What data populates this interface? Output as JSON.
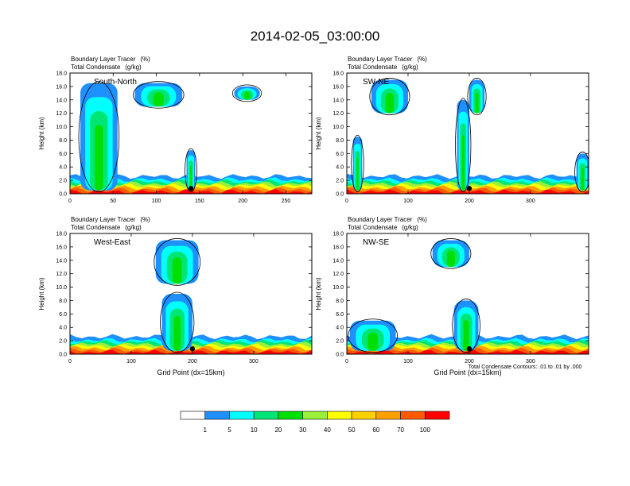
{
  "figure": {
    "title": "2014-02-05_03:00:00",
    "field_label": "Boundary Layer Tracer",
    "field_units": "(%)",
    "contour_label": "Total Condensate",
    "contour_units": "(g/kg)",
    "ylabel": "Height (km)",
    "xlabel": "Grid Point (dx=15km)",
    "contour_note": "Total Condensate Contours: .01 to .01 by .000",
    "contour_tag": ".01"
  },
  "colorbar": {
    "levels": [
      "1",
      "5",
      "10",
      "20",
      "30",
      "40",
      "50",
      "60",
      "70",
      "100"
    ],
    "colors": [
      "#ffffff",
      "#1e90ff",
      "#00ffff",
      "#00e676",
      "#00e000",
      "#9bf03a",
      "#ffff00",
      "#ffd000",
      "#ffa000",
      "#ff5a00",
      "#ff0000"
    ]
  },
  "chart_data": [
    {
      "type": "heatmap",
      "panel": "South-North",
      "xlim": [
        0,
        280
      ],
      "ylim": [
        0,
        18
      ],
      "xticks": [
        0,
        50,
        100,
        150,
        200,
        250
      ],
      "yticks": [
        "0.0",
        "2.0",
        "4.0",
        "6.0",
        "8.0",
        "10.0",
        "12.0",
        "14.0",
        "16.0",
        "18.0"
      ],
      "marker_x": 140,
      "plumes": [
        {
          "x0": 12,
          "x1": 55,
          "y0": 0.5,
          "y1": 16.5
        },
        {
          "x0": 75,
          "x1": 130,
          "y0": 13.0,
          "y1": 16.5
        },
        {
          "x0": 135,
          "x1": 145,
          "y0": 0.5,
          "y1": 6.5
        },
        {
          "x0": 190,
          "x1": 220,
          "y0": 14.0,
          "y1": 16.0
        }
      ]
    },
    {
      "type": "heatmap",
      "panel": "SW-NE",
      "xlim": [
        0,
        395
      ],
      "ylim": [
        0,
        18
      ],
      "xticks": [
        0,
        100,
        200,
        300
      ],
      "yticks": [
        "0.0",
        "2.0",
        "4.0",
        "6.0",
        "8.0",
        "10.0",
        "12.0",
        "14.0",
        "16.0",
        "18.0"
      ],
      "marker_x": 200,
      "plumes": [
        {
          "x0": 10,
          "x1": 25,
          "y0": 0.5,
          "y1": 8.5
        },
        {
          "x0": 40,
          "x1": 100,
          "y0": 12.0,
          "y1": 17.0
        },
        {
          "x0": 180,
          "x1": 200,
          "y0": 0.5,
          "y1": 14.0
        },
        {
          "x0": 200,
          "x1": 225,
          "y0": 12.0,
          "y1": 17.0
        },
        {
          "x0": 375,
          "x1": 395,
          "y0": 0.5,
          "y1": 6.0
        }
      ]
    },
    {
      "type": "heatmap",
      "panel": "West-East",
      "xlim": [
        0,
        395
      ],
      "ylim": [
        0,
        18
      ],
      "xticks": [
        0,
        100,
        200,
        300
      ],
      "yticks": [
        "0.0",
        "2.0",
        "4.0",
        "6.0",
        "8.0",
        "10.0",
        "12.0",
        "14.0",
        "16.0",
        "18.0"
      ],
      "marker_x": 200,
      "plumes": [
        {
          "x0": 150,
          "x1": 200,
          "y0": 0.5,
          "y1": 9.0
        },
        {
          "x0": 140,
          "x1": 210,
          "y0": 10.5,
          "y1": 17.0
        }
      ]
    },
    {
      "type": "heatmap",
      "panel": "NW-SE",
      "xlim": [
        0,
        395
      ],
      "ylim": [
        0,
        18
      ],
      "xticks": [
        0,
        100,
        200,
        300
      ],
      "yticks": [
        "0.0",
        "2.0",
        "4.0",
        "6.0",
        "8.0",
        "10.0",
        "12.0",
        "14.0",
        "16.0",
        "18.0"
      ],
      "marker_x": 200,
      "plumes": [
        {
          "x0": 5,
          "x1": 80,
          "y0": 0.5,
          "y1": 5.0
        },
        {
          "x0": 175,
          "x1": 215,
          "y0": 0.5,
          "y1": 8.0
        },
        {
          "x0": 140,
          "x1": 200,
          "y0": 13.0,
          "y1": 17.0
        }
      ]
    }
  ]
}
